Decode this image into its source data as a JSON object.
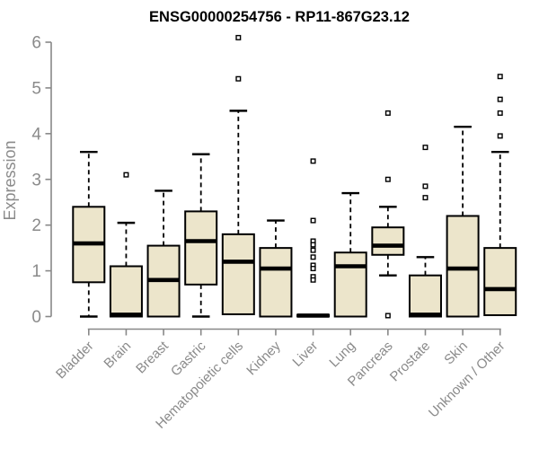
{
  "title": "ENSG00000254756 - RP11-867G23.12",
  "colors": {
    "box_fill": "#ece5cb",
    "box_border": "#000000",
    "median": "#000000",
    "whisker": "#000000",
    "outlier_fill": "#ffffff",
    "axis": "#888888",
    "tick_text": "#8a8a8a",
    "title_text": "#000000",
    "background": "#ffffff"
  },
  "chart_data": {
    "type": "boxplot",
    "title": "ENSG00000254756 - RP11-867G23.12",
    "xlabel": "",
    "ylabel": "Expression",
    "ylim": [
      0,
      6
    ],
    "yticks": [
      0,
      1,
      2,
      3,
      4,
      5,
      6
    ],
    "grid": false,
    "legend": "none",
    "categories": [
      "Bladder",
      "Brain",
      "Breast",
      "Gastric",
      "Hematopoietic cells",
      "Kidney",
      "Liver",
      "Lung",
      "Pancreas",
      "Prostate",
      "Skin",
      "Unknown / Other"
    ],
    "series": [
      {
        "name": "Bladder",
        "whisker_low": 0,
        "q1": 0.75,
        "median": 1.6,
        "q3": 2.4,
        "whisker_high": 3.6,
        "outliers": []
      },
      {
        "name": "Brain",
        "whisker_low": 0,
        "q1": 0,
        "median": 0.04,
        "q3": 1.1,
        "whisker_high": 2.05,
        "outliers": [
          3.1
        ]
      },
      {
        "name": "Breast",
        "whisker_low": 0,
        "q1": 0,
        "median": 0.8,
        "q3": 1.55,
        "whisker_high": 2.75,
        "outliers": []
      },
      {
        "name": "Gastric",
        "whisker_low": 0,
        "q1": 0.7,
        "median": 1.65,
        "q3": 2.3,
        "whisker_high": 3.55,
        "outliers": []
      },
      {
        "name": "Hematopoietic cells",
        "whisker_low": 0.05,
        "q1": 0.05,
        "median": 1.2,
        "q3": 1.8,
        "whisker_high": 4.5,
        "outliers": [
          6.1,
          5.2
        ]
      },
      {
        "name": "Kidney",
        "whisker_low": 0,
        "q1": 0,
        "median": 1.05,
        "q3": 1.5,
        "whisker_high": 2.1,
        "outliers": []
      },
      {
        "name": "Liver",
        "whisker_low": 0,
        "q1": 0,
        "median": 0.02,
        "q3": 0.04,
        "whisker_high": 0.04,
        "outliers": [
          3.4,
          2.1,
          1.65,
          1.57,
          1.45,
          1.3,
          1.12,
          1.05,
          0.87,
          0.8
        ]
      },
      {
        "name": "Lung",
        "whisker_low": 0,
        "q1": 0,
        "median": 1.1,
        "q3": 1.4,
        "whisker_high": 2.7,
        "outliers": []
      },
      {
        "name": "Pancreas",
        "whisker_low": 0.9,
        "q1": 1.35,
        "median": 1.55,
        "q3": 1.95,
        "whisker_high": 2.4,
        "outliers": [
          4.45,
          3.0,
          0.02
        ]
      },
      {
        "name": "Prostate",
        "whisker_low": 0,
        "q1": 0,
        "median": 0.04,
        "q3": 0.9,
        "whisker_high": 1.3,
        "outliers": [
          3.7,
          2.85,
          2.6
        ]
      },
      {
        "name": "Skin",
        "whisker_low": 0,
        "q1": 0,
        "median": 1.05,
        "q3": 2.2,
        "whisker_high": 4.15,
        "outliers": []
      },
      {
        "name": "Unknown / Other",
        "whisker_low": 0.03,
        "q1": 0.03,
        "median": 0.6,
        "q3": 1.5,
        "whisker_high": 3.6,
        "outliers": [
          5.25,
          4.75,
          4.45,
          3.95
        ]
      }
    ]
  }
}
